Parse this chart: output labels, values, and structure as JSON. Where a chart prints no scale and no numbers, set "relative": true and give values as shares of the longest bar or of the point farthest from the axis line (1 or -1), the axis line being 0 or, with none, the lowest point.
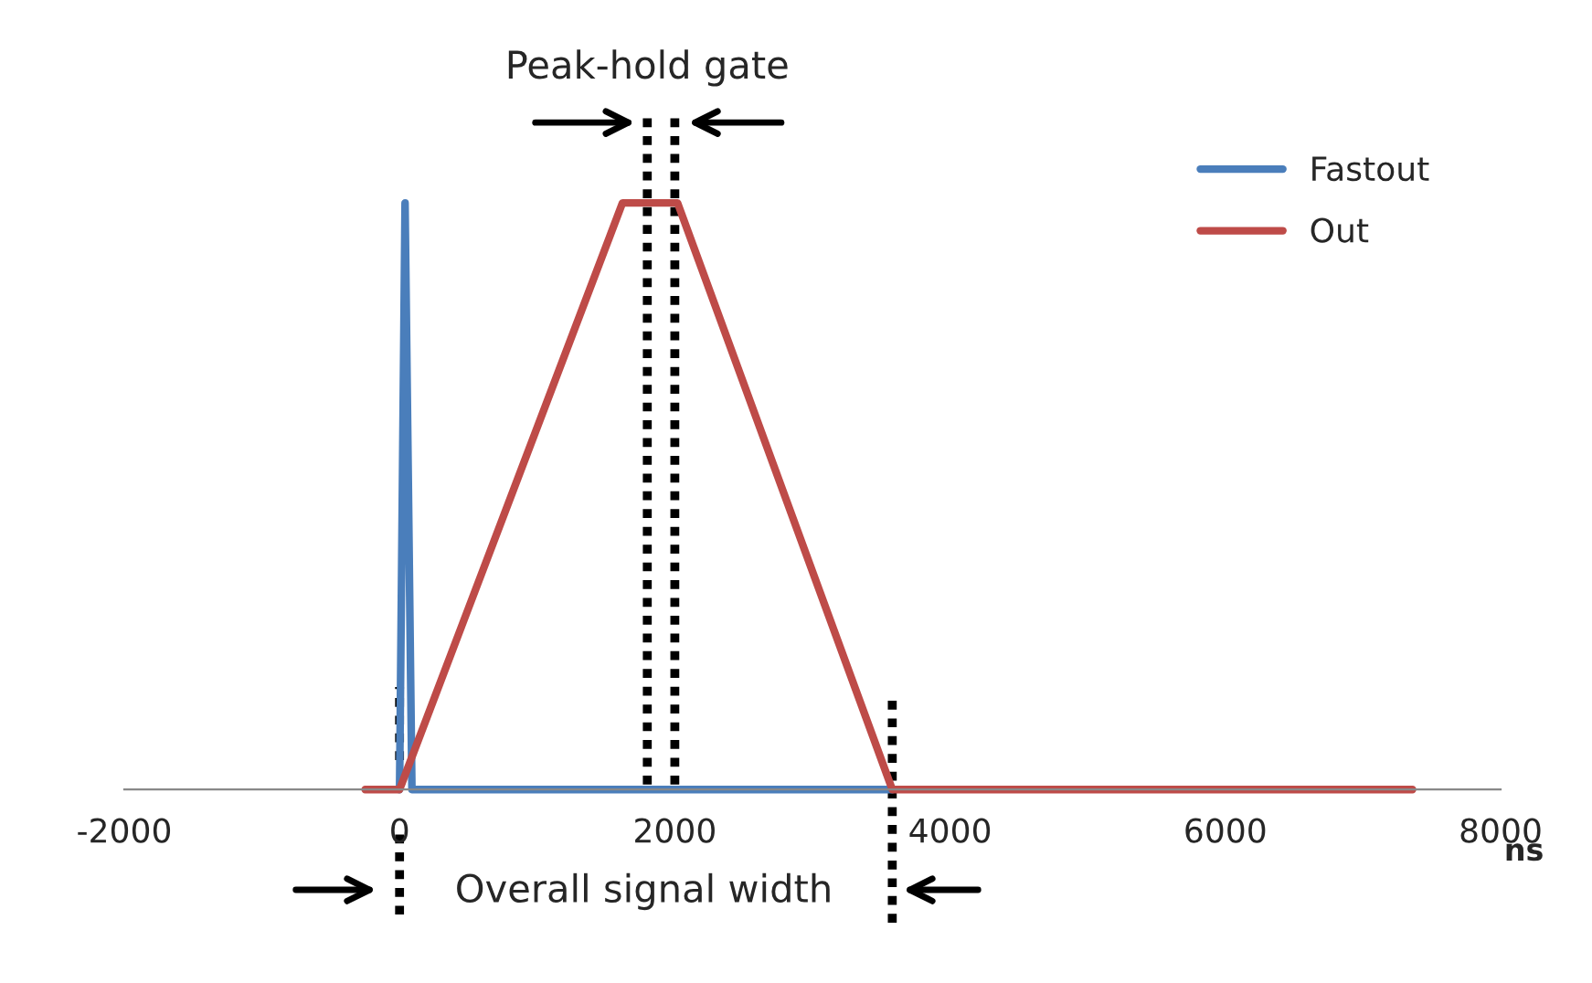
{
  "chart_data": {
    "type": "line",
    "relative": true,
    "xlabel": "ns",
    "xlim": [
      -2000,
      8000
    ],
    "xticks": [
      -2000,
      0,
      2000,
      4000,
      6000,
      8000
    ],
    "legend": "top right",
    "grid": false,
    "series": [
      {
        "name": "Fastout",
        "color": "#4a7ebb",
        "x": [
          0,
          40,
          90,
          3580
        ],
        "values": [
          0,
          1,
          0,
          0
        ]
      },
      {
        "name": "Out",
        "color": "#be4b48",
        "x": [
          -250,
          0,
          1620,
          2020,
          3580,
          7360
        ],
        "values": [
          0,
          0,
          1,
          1,
          0,
          0
        ]
      }
    ],
    "ref_lines": [
      {
        "axis": "x",
        "value": 0,
        "label": null,
        "line_style": "dotted",
        "color": "#000000"
      },
      {
        "axis": "x",
        "value": 1800,
        "label": null,
        "line_style": "dotted",
        "color": "#000000"
      },
      {
        "axis": "x",
        "value": 2000,
        "label": null,
        "line_style": "dotted",
        "color": "#000000"
      },
      {
        "axis": "x",
        "value": 3580,
        "label": null,
        "line_style": "dotted",
        "color": "#000000"
      }
    ],
    "annotations": [
      "Peak-hold gate",
      "Overall signal width"
    ]
  }
}
